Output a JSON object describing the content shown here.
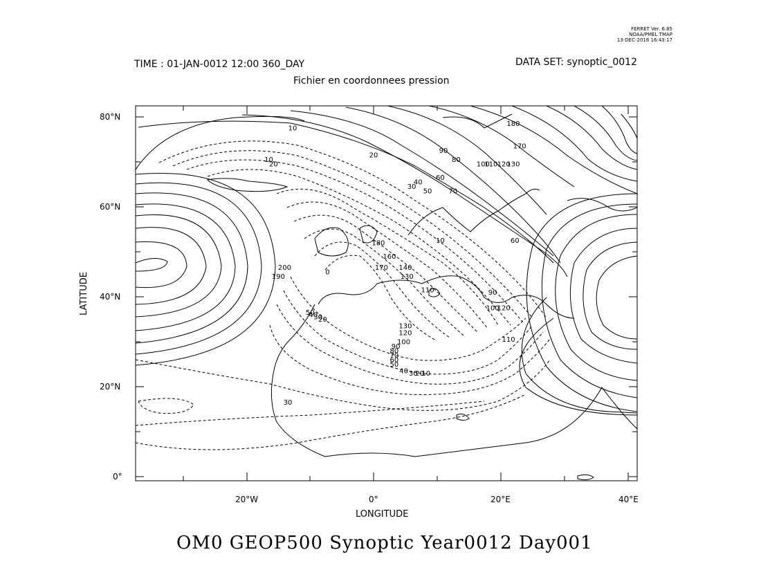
{
  "stamp": {
    "line1": "FERRET Ver. 6.85",
    "line2": "NOAA/PMEL TMAP",
    "line3": "13-DEC-2016 16:43:17"
  },
  "header": {
    "time": "TIME : 01-JAN-0012 12:00 360_DAY",
    "dataset": "DATA SET: synoptic_0012",
    "subtitle": "Fichier en coordonnees pression"
  },
  "axes": {
    "xlabel": "LONGITUDE",
    "ylabel": "LATITUDE",
    "xticks": [
      "20°W",
      "0°",
      "20°E",
      "40°E"
    ],
    "yticks": [
      "80°N",
      "60°N",
      "40°N",
      "20°N",
      "0°"
    ]
  },
  "title": "OM0 GEOP500 Synoptic Year0012 Day001",
  "contour_labels": [
    {
      "text": "10",
      "lon": -25.5,
      "lat": 77
    },
    {
      "text": "10",
      "lon": -33,
      "lat": 70
    },
    {
      "text": "20",
      "lon": -31.5,
      "lat": 69
    },
    {
      "text": "20",
      "lon": 0,
      "lat": 71
    },
    {
      "text": "30",
      "lon": 12,
      "lat": 64
    },
    {
      "text": "40",
      "lon": 14,
      "lat": 65
    },
    {
      "text": "50",
      "lon": 17,
      "lat": 63
    },
    {
      "text": "60",
      "lon": 21,
      "lat": 66
    },
    {
      "text": "70",
      "lon": 25,
      "lat": 63
    },
    {
      "text": "80",
      "lon": 26,
      "lat": 70
    },
    {
      "text": "90",
      "lon": 22,
      "lat": 72
    },
    {
      "text": "100",
      "lon": 34.5,
      "lat": 69
    },
    {
      "text": "110",
      "lon": 37,
      "lat": 69
    },
    {
      "text": "120",
      "lon": 41,
      "lat": 69
    },
    {
      "text": "130",
      "lon": 44,
      "lat": 69
    },
    {
      "text": "170",
      "lon": 46,
      "lat": 73
    },
    {
      "text": "180",
      "lon": 44,
      "lat": 78
    },
    {
      "text": "200",
      "lon": -28,
      "lat": 46
    },
    {
      "text": "190",
      "lon": -30,
      "lat": 44
    },
    {
      "text": "0",
      "lon": -14.5,
      "lat": 45
    },
    {
      "text": "50",
      "lon": -20,
      "lat": 36
    },
    {
      "text": "40",
      "lon": -19,
      "lat": 35.5
    },
    {
      "text": "30",
      "lon": -17.5,
      "lat": 35
    },
    {
      "text": "20",
      "lon": -16,
      "lat": 34.5
    },
    {
      "text": "10",
      "lon": 21,
      "lat": 52
    },
    {
      "text": "180",
      "lon": 1.5,
      "lat": 51.5
    },
    {
      "text": "170",
      "lon": 2.5,
      "lat": 46
    },
    {
      "text": "160",
      "lon": 5,
      "lat": 48.5
    },
    {
      "text": "140",
      "lon": 10,
      "lat": 46
    },
    {
      "text": "130",
      "lon": 10.5,
      "lat": 44
    },
    {
      "text": "110",
      "lon": 17,
      "lat": 41
    },
    {
      "text": "130",
      "lon": 10,
      "lat": 33
    },
    {
      "text": "120",
      "lon": 10,
      "lat": 31.5
    },
    {
      "text": "100",
      "lon": 9.5,
      "lat": 29.5
    },
    {
      "text": "90",
      "lon": 7,
      "lat": 28.5
    },
    {
      "text": "80",
      "lon": 6.5,
      "lat": 27.5
    },
    {
      "text": "70",
      "lon": 6.5,
      "lat": 26.5
    },
    {
      "text": "60",
      "lon": 6.5,
      "lat": 25.5
    },
    {
      "text": "50",
      "lon": 6.5,
      "lat": 24.5
    },
    {
      "text": "40",
      "lon": 9.5,
      "lat": 23
    },
    {
      "text": "30",
      "lon": 12.5,
      "lat": 22.5
    },
    {
      "text": "20",
      "lon": 14.5,
      "lat": 22.5
    },
    {
      "text": "10",
      "lon": 16.5,
      "lat": 22.5
    },
    {
      "text": "60",
      "lon": 44.5,
      "lat": 52
    },
    {
      "text": "90",
      "lon": 37.5,
      "lat": 40.5
    },
    {
      "text": "100",
      "lon": 37.5,
      "lat": 37
    },
    {
      "text": "120",
      "lon": 41,
      "lat": 37
    },
    {
      "text": "110",
      "lon": 42.5,
      "lat": 30
    },
    {
      "text": "30",
      "lon": -27,
      "lat": 16
    }
  ]
}
